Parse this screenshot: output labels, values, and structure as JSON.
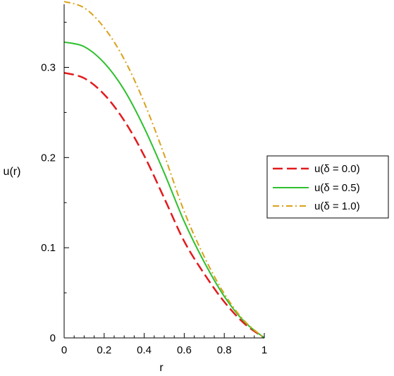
{
  "chart_data": {
    "type": "line",
    "xlabel": "r",
    "ylabel": "u(r)",
    "xlim": [
      0,
      1
    ],
    "ylim": [
      0,
      0.37
    ],
    "x_ticks": [
      {
        "value": 0,
        "label": "0"
      },
      {
        "value": 0.2,
        "label": "0.2"
      },
      {
        "value": 0.4,
        "label": "0.4"
      },
      {
        "value": 0.6,
        "label": "0.6"
      },
      {
        "value": 0.8,
        "label": "0.8"
      },
      {
        "value": 1,
        "label": "1"
      }
    ],
    "y_ticks": [
      {
        "value": 0,
        "label": "0"
      },
      {
        "value": 0.1,
        "label": "0.1"
      },
      {
        "value": 0.2,
        "label": "0.2"
      },
      {
        "value": 0.3,
        "label": "0.3"
      }
    ],
    "grid": false,
    "legend_position": "right",
    "series": [
      {
        "name": "u(δ = 0.0)",
        "color": "#e31a1c",
        "dash": "dash",
        "x": [
          0,
          0.1,
          0.2,
          0.3,
          0.4,
          0.5,
          0.6,
          0.7,
          0.8,
          0.9,
          1.0
        ],
        "y": [
          0.294,
          0.288,
          0.27,
          0.241,
          0.202,
          0.155,
          0.107,
          0.071,
          0.04,
          0.016,
          0
        ]
      },
      {
        "name": "u(δ = 0.5)",
        "color": "#2ec02e",
        "dash": "solid",
        "x": [
          0,
          0.1,
          0.2,
          0.3,
          0.4,
          0.5,
          0.6,
          0.7,
          0.8,
          0.9,
          1.0
        ],
        "y": [
          0.328,
          0.323,
          0.305,
          0.275,
          0.233,
          0.183,
          0.129,
          0.084,
          0.046,
          0.018,
          0
        ]
      },
      {
        "name": "u(δ = 1.0)",
        "color": "#d9a21b",
        "dash": "dashdot",
        "x": [
          0,
          0.1,
          0.2,
          0.3,
          0.4,
          0.5,
          0.6,
          0.7,
          0.8,
          0.9,
          1.0
        ],
        "y": [
          0.373,
          0.366,
          0.344,
          0.309,
          0.261,
          0.203,
          0.14,
          0.09,
          0.049,
          0.019,
          0
        ]
      }
    ]
  }
}
